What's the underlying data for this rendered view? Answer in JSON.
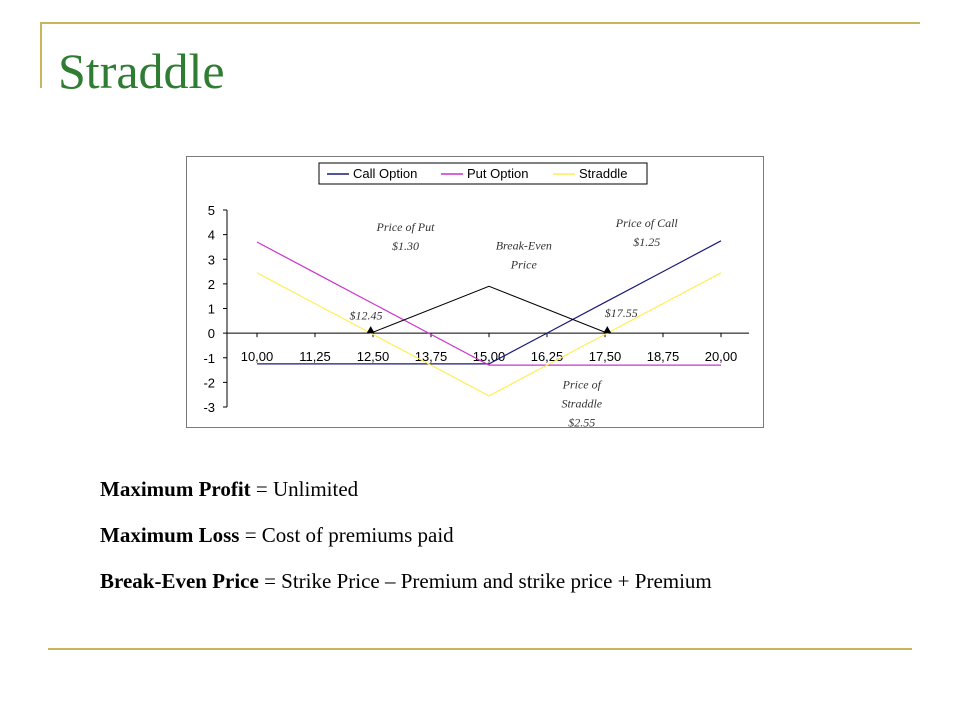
{
  "slide": {
    "title": "Straddle",
    "bullets": [
      {
        "label": "Maximum Profit",
        "text": " = Unlimited"
      },
      {
        "label": "Maximum Loss",
        "text": " = Cost of premiums paid"
      },
      {
        "label": "Break-Even Price",
        "text": " = Strike Price – Premium and strike price + Premium"
      }
    ],
    "accent_color": "#c8b560",
    "title_color": "#2e7d32"
  },
  "chart_data": {
    "type": "line",
    "x": [
      10.0,
      11.25,
      12.5,
      13.75,
      15.0,
      16.25,
      17.5,
      18.75,
      20.0
    ],
    "x_tick_labels": [
      "10,00",
      "11,25",
      "12,50",
      "13,75",
      "15,00",
      "16,25",
      "17,50",
      "18,75",
      "20,00"
    ],
    "ylim": [
      -3,
      5
    ],
    "y_ticks": [
      5,
      4,
      3,
      2,
      1,
      0,
      -1,
      -2,
      -3
    ],
    "legend_position": "top",
    "grid": false,
    "series": [
      {
        "name": "Call Option",
        "color": "#1a1a7a",
        "values": [
          -1.25,
          -1.25,
          -1.25,
          -1.25,
          -1.25,
          0.0,
          1.25,
          2.5,
          3.75
        ]
      },
      {
        "name": "Put Option",
        "color": "#cc33cc",
        "values": [
          3.7,
          2.45,
          1.2,
          -0.05,
          -1.3,
          -1.3,
          -1.3,
          -1.3,
          -1.3
        ]
      },
      {
        "name": "Straddle",
        "color": "#ffee55",
        "values": [
          2.45,
          1.2,
          -0.05,
          -1.3,
          -2.55,
          -1.3,
          -0.05,
          1.2,
          2.45
        ]
      }
    ],
    "break_even_marker": {
      "points": [
        [
          12.45,
          0
        ],
        [
          15.0,
          1.9
        ],
        [
          17.55,
          0
        ]
      ],
      "color": "#000000"
    },
    "annotations": [
      {
        "lines": [
          "Price of Put",
          "$1.30"
        ],
        "x": 13.2,
        "y": 4.15
      },
      {
        "lines": [
          "Break-Even",
          "Price"
        ],
        "x": 15.75,
        "y": 3.4
      },
      {
        "lines": [
          "Price of Call",
          "$1.25"
        ],
        "x": 18.4,
        "y": 4.3
      },
      {
        "lines": [
          "$12.45"
        ],
        "x": 12.35,
        "y": 0.55
      },
      {
        "lines": [
          "$17.55"
        ],
        "x": 17.85,
        "y": 0.65
      },
      {
        "lines": [
          "Price of",
          "Straddle",
          "$2.55"
        ],
        "x": 17.0,
        "y": -2.25
      }
    ]
  }
}
